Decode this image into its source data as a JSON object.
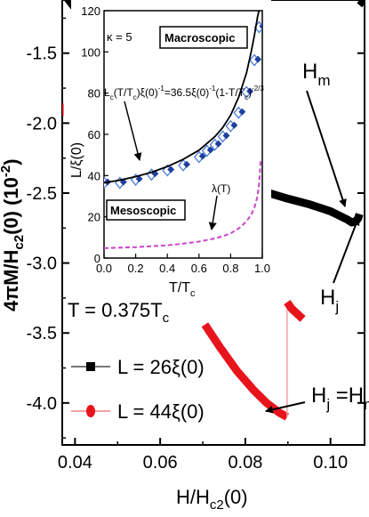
{
  "chart_data": [
    {
      "type": "scatter",
      "xlabel": "H/H",
      "xlabel_sub": "c2",
      "xlabel_tail": "(0)",
      "ylabel": "4πM/H",
      "ylabel_sub": "c2",
      "ylabel_tail": "(0) (10",
      "ylabel_sup": "-2",
      "ylabel_close": ")",
      "xlim": [
        0.037,
        0.108
      ],
      "ylim": [
        -4.3,
        -1.12
      ],
      "xticks": [
        "0.04",
        "0.06",
        "0.08",
        "0.10"
      ],
      "yticks": [
        "-1.5",
        "-2.0",
        "-2.5",
        "-3.0",
        "-3.5",
        "-4.0"
      ],
      "temperature_label": "T = 0.375T",
      "temperature_sub": "c",
      "series": [
        {
          "name": "L = 26ξ(0)",
          "color": "#000000",
          "x": [
            0.036,
            0.07,
            0.08,
            0.09,
            0.095,
            0.098,
            0.1,
            0.102,
            0.104,
            0.105,
            0.106,
            0.1065,
            0.1068,
            0.1068,
            0.108
          ],
          "y": [
            -1.02,
            -2.36,
            -2.45,
            -2.54,
            -2.58,
            -2.61,
            -2.63,
            -2.66,
            -2.69,
            -2.71,
            -2.7,
            -2.68,
            -2.65,
            -1.12,
            -1.15
          ]
        },
        {
          "name": "L = 44ξ(0)",
          "color": "#e8141c",
          "x": [
            0.0367,
            0.0367,
            0.0705,
            0.074,
            0.078,
            0.082,
            0.085,
            0.088,
            0.0898,
            0.0898,
            0.091,
            0.0935
          ],
          "y": [
            -1.86,
            -1.95,
            -3.44,
            -3.6,
            -3.77,
            -3.91,
            -4.0,
            -4.07,
            -4.1,
            -3.28,
            -3.33,
            -3.4
          ]
        }
      ],
      "annotations": {
        "hm": {
          "label": "H",
          "sub": "m"
        },
        "hj": {
          "label": "H",
          "sub": "j"
        },
        "hjhm": {
          "label1": "H",
          "sub1": "j",
          "eq": " =H",
          "sub2": "m"
        }
      }
    },
    {
      "type": "line",
      "xlabel": "T/T",
      "xlabel_sub": "c",
      "ylabel": "L/ξ(0)",
      "xlim": [
        0.0,
        1.0
      ],
      "ylim": [
        0,
        120
      ],
      "xticks": [
        "0.0",
        "0.2",
        "0.4",
        "0.6",
        "0.8",
        "1.0"
      ],
      "yticks": [
        "0",
        "20",
        "40",
        "60",
        "80",
        "100",
        "120"
      ],
      "kappa_label": "κ = 5",
      "box_macroscopic": "Macroscopic",
      "box_mesoscopic": "Mesoscopic",
      "formula": "L",
      "formula_sub": "c",
      "formula_tail": "(T/T",
      "formula_sub2": "c",
      "formula_rest": ")ξ(0)",
      "formula_sup1": "-1",
      "formula_eq": "=36.5ξ(0)",
      "formula_sup2": "-1",
      "formula_paren": "(1-T/T",
      "formula_sub3": "c",
      "formula_close": ")",
      "formula_sup3": "-2/3",
      "lambda_label": "λ(T)",
      "series": [
        {
          "name": "fit",
          "color": "#000000",
          "x": [
            0.0,
            0.1,
            0.2,
            0.3,
            0.4,
            0.5,
            0.6,
            0.7,
            0.75,
            0.8,
            0.85,
            0.9,
            0.93,
            0.95,
            0.97,
            0.985,
            0.99
          ],
          "y": [
            36.5,
            37.8,
            39.5,
            41.6,
            44.4,
            47.9,
            52.3,
            58.9,
            63.3,
            69.3,
            77.9,
            89.7,
            100.1,
            108.0,
            117.0,
            122.0,
            125.0
          ]
        },
        {
          "name": "data",
          "color": "#1f3fa0",
          "x": [
            0.0,
            0.1,
            0.2,
            0.3,
            0.4,
            0.5,
            0.6,
            0.65,
            0.7,
            0.75,
            0.8,
            0.85,
            0.9,
            0.95,
            0.98
          ],
          "y": [
            36.5,
            36.5,
            38.0,
            40.5,
            42.5,
            45.0,
            49.0,
            52.0,
            55.0,
            59.0,
            64.0,
            70.5,
            80.5,
            96.0,
            112.0
          ]
        },
        {
          "name": "λ(T)",
          "color": "#cc44cc",
          "x": [
            0.0,
            0.2,
            0.4,
            0.5,
            0.6,
            0.7,
            0.75,
            0.8,
            0.85,
            0.9,
            0.93,
            0.95,
            0.97,
            0.98,
            0.99
          ],
          "y": [
            4.8,
            5.3,
            6.2,
            7.0,
            8.0,
            9.5,
            10.6,
            12.0,
            14.3,
            17.8,
            21.0,
            24.5,
            30.0,
            36.0,
            48.0
          ]
        }
      ]
    }
  ]
}
